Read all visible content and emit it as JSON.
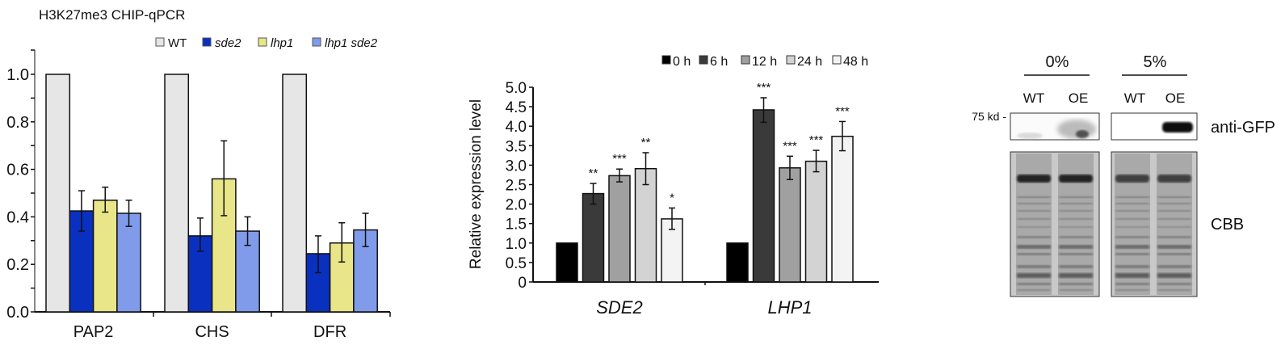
{
  "chart_data": [
    {
      "type": "bar",
      "title": "H3K27me3   CHIP-qPCR",
      "xlabel": "",
      "ylabel": "",
      "ylim": [
        0,
        1.1
      ],
      "yticks": [
        "0.0",
        "0.2",
        "0.4",
        "0.6",
        "0.8",
        "1.0"
      ],
      "grid": false,
      "legend_position": "top-right",
      "categories": [
        "PAP2",
        "CHS",
        "DFR"
      ],
      "series": [
        {
          "name": "WT",
          "italic": false,
          "color": "#e6e6e6",
          "values": [
            1.0,
            1.0,
            1.0
          ],
          "err_low": [
            null,
            null,
            null
          ],
          "err_high": [
            null,
            null,
            null
          ]
        },
        {
          "name": "sde2",
          "italic": true,
          "color": "#0a30c0",
          "values": [
            0.425,
            0.32,
            0.245
          ],
          "err_low": [
            0.34,
            0.255,
            0.165
          ],
          "err_high": [
            0.51,
            0.395,
            0.32
          ]
        },
        {
          "name": "lhp1",
          "italic": true,
          "color": "#e8e688",
          "values": [
            0.47,
            0.56,
            0.29
          ],
          "err_low": [
            0.42,
            0.405,
            0.21
          ],
          "err_high": [
            0.525,
            0.72,
            0.375
          ]
        },
        {
          "name": "lhp1 sde2",
          "italic": true,
          "color": "#7f9bea",
          "values": [
            0.415,
            0.34,
            0.345
          ],
          "err_low": [
            0.36,
            0.28,
            0.275
          ],
          "err_high": [
            0.47,
            0.4,
            0.415
          ]
        }
      ]
    },
    {
      "type": "bar",
      "title": "",
      "xlabel": "",
      "ylabel": "Relative expression level",
      "ylim": [
        0,
        5.0
      ],
      "yticks": [
        "0",
        "0.5",
        "1.0",
        "1.5",
        "2.0",
        "2.5",
        "3.0",
        "3.5",
        "4.0",
        "4.5",
        "5.0"
      ],
      "grid": false,
      "legend_position": "top-right",
      "categories": [
        "SDE2",
        "LHP1"
      ],
      "series": [
        {
          "name": "0 h",
          "color": "#000000",
          "values": [
            1.0,
            1.0
          ],
          "err_low": [
            null,
            null
          ],
          "err_high": [
            null,
            null
          ],
          "stars": [
            "",
            ""
          ]
        },
        {
          "name": "6 h",
          "color": "#3a3a3a",
          "values": [
            2.27,
            4.42
          ],
          "err_low": [
            2.0,
            4.1
          ],
          "err_high": [
            2.53,
            4.73
          ],
          "stars": [
            "**",
            "***"
          ]
        },
        {
          "name": "12 h",
          "color": "#a0a0a0",
          "values": [
            2.73,
            2.93
          ],
          "err_low": [
            2.57,
            2.63
          ],
          "err_high": [
            2.9,
            3.23
          ],
          "stars": [
            "***",
            "***"
          ]
        },
        {
          "name": "24 h",
          "color": "#d3d3d3",
          "values": [
            2.91,
            3.1
          ],
          "err_low": [
            2.5,
            2.83
          ],
          "err_high": [
            3.32,
            3.38
          ],
          "stars": [
            "**",
            "***"
          ]
        },
        {
          "name": "48 h",
          "color": "#f3f3f3",
          "values": [
            1.62,
            3.74
          ],
          "err_low": [
            1.35,
            3.37
          ],
          "err_high": [
            1.9,
            4.12
          ],
          "stars": [
            "*",
            "***"
          ]
        }
      ]
    }
  ],
  "blot": {
    "conditions": [
      "0%",
      "5%"
    ],
    "lanes": [
      "WT",
      "OE",
      "WT",
      "OE"
    ],
    "marker": "75 kd -",
    "rows": [
      "anti-GFP",
      "CBB"
    ]
  }
}
